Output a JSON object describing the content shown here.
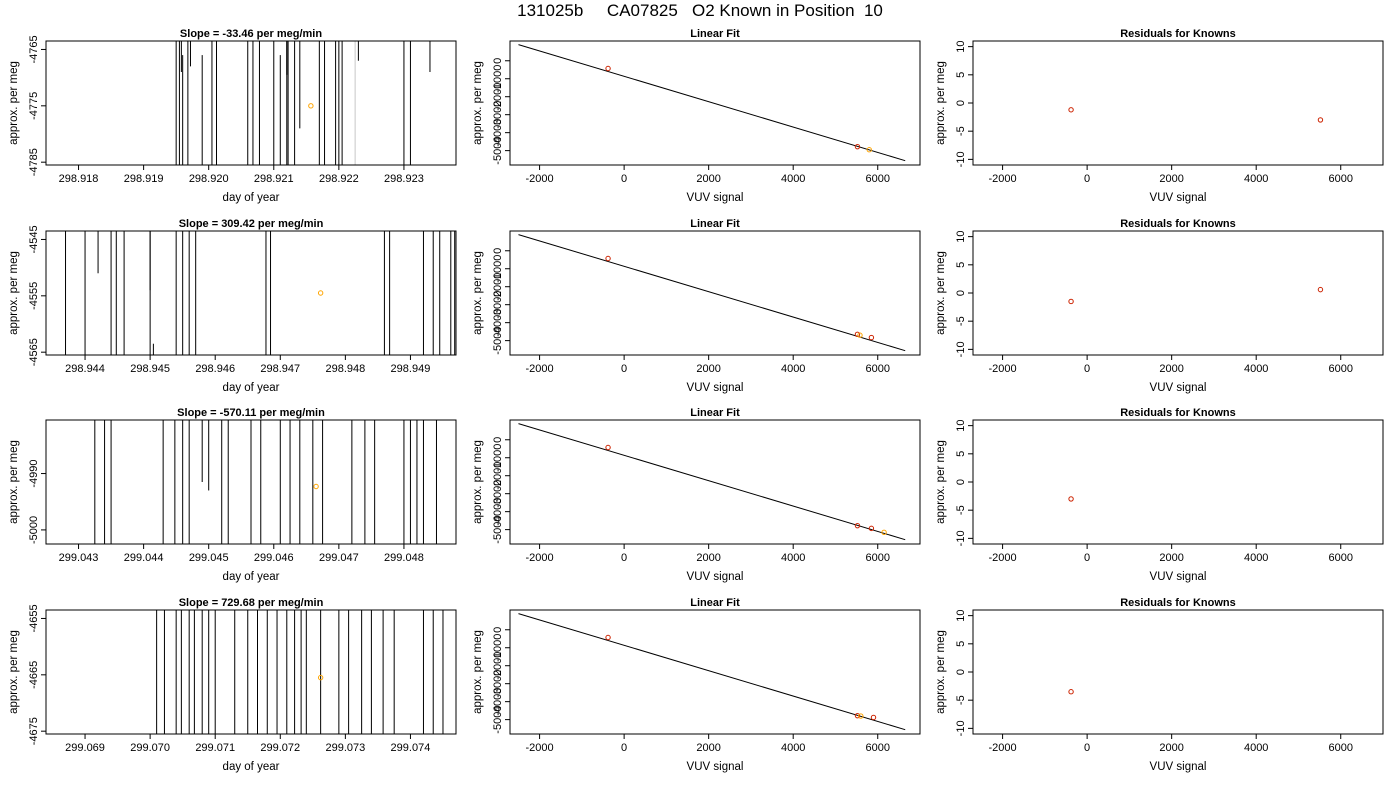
{
  "page_title": "131025b     CA07825   O2 Known in Position  10",
  "colors": {
    "frame": "#000000",
    "trace": "#000000",
    "trace_light": "#c8c8c8",
    "marker_orange": "#ffa500",
    "marker_red": "#cc2200",
    "fit_line": "#000000"
  },
  "chart_data": [
    {
      "row": 1,
      "panel": "time-series",
      "type": "line",
      "title": "Slope =  -33.46  per meg/min",
      "xlabel": "day of year",
      "ylabel": "approx. per meg",
      "xlim": [
        298.9175,
        298.9238
      ],
      "ylim": [
        -4785.5,
        -4763.5
      ],
      "xticks": [
        "298.918",
        "298.919",
        "298.920",
        "298.921",
        "298.922",
        "298.923"
      ],
      "xtick_values": [
        298.918,
        298.919,
        298.92,
        298.921,
        298.922,
        298.923
      ],
      "yticks": [
        "-4785",
        "-4775",
        "-4765"
      ],
      "ytick_values": [
        -4785,
        -4775,
        -4765
      ],
      "drops": [
        {
          "x": 298.9195,
          "top": -4763.5
        },
        {
          "x": 298.91955,
          "top": -4763.5
        },
        {
          "x": 298.9196,
          "top": -4766.0
        },
        {
          "x": 298.91968,
          "top": -4763.5
        },
        {
          "x": 298.9199,
          "top": -4766.0
        },
        {
          "x": 298.92005,
          "top": -4763.5
        },
        {
          "x": 298.92012,
          "top": -4763.5
        },
        {
          "x": 298.9206,
          "top": -4763.5
        },
        {
          "x": 298.92068,
          "top": -4763.5
        },
        {
          "x": 298.92078,
          "top": -4763.5
        },
        {
          "x": 298.921,
          "top": -4763.5
        },
        {
          "x": 298.9211,
          "top": -4766.0
        },
        {
          "x": 298.92122,
          "top": -4763.5
        },
        {
          "x": 298.92132,
          "top": -4763.5
        },
        {
          "x": 298.9217,
          "top": -4763.5
        },
        {
          "x": 298.92178,
          "top": -4763.5
        },
        {
          "x": 298.92195,
          "top": -4763.5
        },
        {
          "x": 298.922,
          "top": -4763.5
        },
        {
          "x": 298.92205,
          "top": -4763.5
        },
        {
          "x": 298.92225,
          "top": -4763.5,
          "light": true
        },
        {
          "x": 298.923,
          "top": -4763.5
        },
        {
          "x": 298.9231,
          "top": -4763.5
        },
        {
          "x": 298.9212,
          "top": -4763.5
        }
      ],
      "hangs": [
        {
          "x": 298.91958,
          "bottom": -4769.0
        },
        {
          "x": 298.91972,
          "bottom": -4768.0
        },
        {
          "x": 298.9214,
          "bottom": -4779.0
        },
        {
          "x": 298.9223,
          "bottom": -4767.0
        },
        {
          "x": 298.9234,
          "bottom": -4769.0
        },
        {
          "x": 298.9212,
          "bottom": -4769.5
        }
      ],
      "points": [
        {
          "x": 298.92157,
          "y": -4775.0,
          "color": "orange"
        }
      ]
    },
    {
      "row": 1,
      "panel": "fit",
      "type": "scatter",
      "title": "Linear Fit",
      "xlabel": "VUV signal",
      "ylabel": "approx. per meg",
      "xlim": [
        -2700,
        7000
      ],
      "ylim": [
        -5800,
        1100
      ],
      "xticks": [
        "-2000",
        "0",
        "2000",
        "4000",
        "6000"
      ],
      "xtick_values": [
        -2000,
        0,
        2000,
        4000,
        6000
      ],
      "yticks": [
        "-5000",
        "-4000",
        "-3000",
        "-2000",
        "-1000",
        "0"
      ],
      "ytick_values": [
        -5000,
        -4000,
        -3000,
        -2000,
        -1000,
        0
      ],
      "line": {
        "x1": -2500,
        "y1": 900,
        "x2": 6650,
        "y2": -5560
      },
      "points": [
        {
          "x": -380,
          "y": -430,
          "color": "red"
        },
        {
          "x": 5520,
          "y": -4780,
          "color": "red"
        },
        {
          "x": 5800,
          "y": -4950,
          "color": "orange"
        }
      ]
    },
    {
      "row": 1,
      "panel": "residuals",
      "type": "scatter",
      "title": "Residuals for Knowns",
      "xlabel": "VUV signal",
      "ylabel": "approx. per meg",
      "xlim": [
        -2700,
        7000
      ],
      "ylim": [
        -11,
        11
      ],
      "xticks": [
        "-2000",
        "0",
        "2000",
        "4000",
        "6000"
      ],
      "xtick_values": [
        -2000,
        0,
        2000,
        4000,
        6000
      ],
      "yticks": [
        "-10",
        "-5",
        "0",
        "5",
        "10"
      ],
      "ytick_values": [
        -10,
        -5,
        0,
        5,
        10
      ],
      "points": [
        {
          "x": -380,
          "y": -1.2,
          "color": "red"
        },
        {
          "x": 5520,
          "y": -3.0,
          "color": "red"
        }
      ]
    },
    {
      "row": 2,
      "panel": "time-series",
      "type": "line",
      "title": "Slope =  309.42  per meg/min",
      "xlabel": "day of year",
      "ylabel": "approx. per meg",
      "xlim": [
        298.9434,
        298.9497
      ],
      "ylim": [
        -4565.5,
        -4543.5
      ],
      "xticks": [
        "298.944",
        "298.945",
        "298.946",
        "298.947",
        "298.948",
        "298.949"
      ],
      "xtick_values": [
        298.944,
        298.945,
        298.946,
        298.947,
        298.948,
        298.949
      ],
      "yticks": [
        "-4565",
        "-4555",
        "-4545"
      ],
      "ytick_values": [
        -4565,
        -4555,
        -4545
      ],
      "drops": [
        {
          "x": 298.9437,
          "top": -4543.5
        },
        {
          "x": 298.944,
          "top": -4543.5
        },
        {
          "x": 298.9444,
          "top": -4543.5
        },
        {
          "x": 298.94448,
          "top": -4543.5
        },
        {
          "x": 298.9446,
          "top": -4543.5
        },
        {
          "x": 298.945,
          "top": -4543.5
        },
        {
          "x": 298.94505,
          "top": -4563.5
        },
        {
          "x": 298.9454,
          "top": -4543.5
        },
        {
          "x": 298.9455,
          "top": -4543.5
        },
        {
          "x": 298.9456,
          "top": -4543.5
        },
        {
          "x": 298.9457,
          "top": -4543.5
        },
        {
          "x": 298.94678,
          "top": -4543.5
        },
        {
          "x": 298.94685,
          "top": -4543.5
        },
        {
          "x": 298.9486,
          "top": -4543.5
        },
        {
          "x": 298.94868,
          "top": -4543.5
        },
        {
          "x": 298.9492,
          "top": -4543.5
        },
        {
          "x": 298.94935,
          "top": -4543.5
        },
        {
          "x": 298.94945,
          "top": -4543.5
        },
        {
          "x": 298.94962,
          "top": -4543.5
        },
        {
          "x": 298.94968,
          "top": -4543.5
        }
      ],
      "hangs": [
        {
          "x": 298.9442,
          "bottom": -4551.0
        },
        {
          "x": 298.945,
          "bottom": -4554.0
        }
      ],
      "points": [
        {
          "x": 298.94762,
          "y": -4554.5,
          "color": "orange"
        }
      ]
    },
    {
      "row": 2,
      "panel": "fit",
      "type": "scatter",
      "title": "Linear Fit",
      "xlabel": "VUV signal",
      "ylabel": "approx. per meg",
      "xlim": [
        -2700,
        7000
      ],
      "ylim": [
        -5800,
        1100
      ],
      "xticks": [
        "-2000",
        "0",
        "2000",
        "4000",
        "6000"
      ],
      "xtick_values": [
        -2000,
        0,
        2000,
        4000,
        6000
      ],
      "yticks": [
        "-5000",
        "-4000",
        "-3000",
        "-2000",
        "-1000",
        "0"
      ],
      "ytick_values": [
        -5000,
        -4000,
        -3000,
        -2000,
        -1000,
        0
      ],
      "line": {
        "x1": -2500,
        "y1": 900,
        "x2": 6650,
        "y2": -5560
      },
      "points": [
        {
          "x": -380,
          "y": -430,
          "color": "red"
        },
        {
          "x": 5520,
          "y": -4650,
          "color": "red"
        },
        {
          "x": 5580,
          "y": -4700,
          "color": "orange"
        },
        {
          "x": 5850,
          "y": -4830,
          "color": "red"
        }
      ]
    },
    {
      "row": 2,
      "panel": "residuals",
      "type": "scatter",
      "title": "Residuals for Knowns",
      "xlabel": "VUV signal",
      "ylabel": "approx. per meg",
      "xlim": [
        -2700,
        7000
      ],
      "ylim": [
        -11,
        11
      ],
      "xticks": [
        "-2000",
        "0",
        "2000",
        "4000",
        "6000"
      ],
      "xtick_values": [
        -2000,
        0,
        2000,
        4000,
        6000
      ],
      "yticks": [
        "-10",
        "-5",
        "0",
        "5",
        "10"
      ],
      "ytick_values": [
        -10,
        -5,
        0,
        5,
        10
      ],
      "points": [
        {
          "x": -380,
          "y": -1.5,
          "color": "red"
        },
        {
          "x": 5520,
          "y": 0.6,
          "color": "red"
        }
      ]
    },
    {
      "row": 3,
      "panel": "time-series",
      "type": "line",
      "title": "Slope =  -570.11  per meg/min",
      "xlabel": "day of year",
      "ylabel": "approx. per meg",
      "xlim": [
        299.0425,
        299.0488
      ],
      "ylim": [
        -5002.5,
        -4980.5
      ],
      "xticks": [
        "299.043",
        "299.044",
        "299.045",
        "299.046",
        "299.047",
        "299.048"
      ],
      "xtick_values": [
        299.043,
        299.044,
        299.045,
        299.046,
        299.047,
        299.048
      ],
      "yticks": [
        "-5000",
        "-4990"
      ],
      "ytick_values": [
        -5000,
        -4990
      ],
      "drops": [
        {
          "x": 299.04325,
          "top": -4980.5
        },
        {
          "x": 299.0434,
          "top": -4980.5
        },
        {
          "x": 299.0435,
          "top": -4980.5
        },
        {
          "x": 299.0443,
          "top": -4980.5
        },
        {
          "x": 299.04448,
          "top": -4980.5
        },
        {
          "x": 299.0446,
          "top": -4980.5
        },
        {
          "x": 299.0447,
          "top": -4980.5
        },
        {
          "x": 299.0452,
          "top": -4980.5
        },
        {
          "x": 299.0453,
          "top": -4980.5
        },
        {
          "x": 299.04565,
          "top": -4980.5
        },
        {
          "x": 299.0458,
          "top": -4980.5
        },
        {
          "x": 299.0461,
          "top": -4980.5
        },
        {
          "x": 299.04625,
          "top": -4980.5
        },
        {
          "x": 299.0464,
          "top": -4980.5
        },
        {
          "x": 299.0466,
          "top": -4980.5
        },
        {
          "x": 299.04675,
          "top": -4980.5
        },
        {
          "x": 299.0472,
          "top": -4980.5
        },
        {
          "x": 299.0474,
          "top": -4980.5
        },
        {
          "x": 299.04755,
          "top": -4980.5
        },
        {
          "x": 299.048,
          "top": -4980.5
        },
        {
          "x": 299.0481,
          "top": -4980.5
        },
        {
          "x": 299.0482,
          "top": -4980.5
        },
        {
          "x": 299.0483,
          "top": -4980.5
        },
        {
          "x": 299.0485,
          "top": -4980.5
        }
      ],
      "hangs": [
        {
          "x": 299.0449,
          "bottom": -4991.5
        },
        {
          "x": 299.045,
          "bottom": -4993.0
        }
      ],
      "points": [
        {
          "x": 299.04665,
          "y": -4992.3,
          "color": "orange"
        }
      ]
    },
    {
      "row": 3,
      "panel": "fit",
      "type": "scatter",
      "title": "Linear Fit",
      "xlabel": "VUV signal",
      "ylabel": "approx. per meg",
      "xlim": [
        -2700,
        7000
      ],
      "ylim": [
        -5800,
        1100
      ],
      "xticks": [
        "-2000",
        "0",
        "2000",
        "4000",
        "6000"
      ],
      "xtick_values": [
        -2000,
        0,
        2000,
        4000,
        6000
      ],
      "yticks": [
        "-5000",
        "-4000",
        "-3000",
        "-2000",
        "-1000",
        "0"
      ],
      "ytick_values": [
        -5000,
        -4000,
        -3000,
        -2000,
        -1000,
        0
      ],
      "line": {
        "x1": -2500,
        "y1": 900,
        "x2": 6650,
        "y2": -5560
      },
      "points": [
        {
          "x": -380,
          "y": -430,
          "color": "red"
        },
        {
          "x": 5520,
          "y": -4780,
          "color": "red"
        },
        {
          "x": 5850,
          "y": -4930,
          "color": "red"
        },
        {
          "x": 6150,
          "y": -5150,
          "color": "orange"
        }
      ]
    },
    {
      "row": 3,
      "panel": "residuals",
      "type": "scatter",
      "title": "Residuals for Knowns",
      "xlabel": "VUV signal",
      "ylabel": "approx. per meg",
      "xlim": [
        -2700,
        7000
      ],
      "ylim": [
        -11,
        11
      ],
      "xticks": [
        "-2000",
        "0",
        "2000",
        "4000",
        "6000"
      ],
      "xtick_values": [
        -2000,
        0,
        2000,
        4000,
        6000
      ],
      "yticks": [
        "-10",
        "-5",
        "0",
        "5",
        "10"
      ],
      "ytick_values": [
        -10,
        -5,
        0,
        5,
        10
      ],
      "points": [
        {
          "x": -380,
          "y": -3.0,
          "color": "red"
        }
      ]
    },
    {
      "row": 4,
      "panel": "time-series",
      "type": "line",
      "title": "Slope =  729.68  per meg/min",
      "xlabel": "day of year",
      "ylabel": "approx. per meg",
      "xlim": [
        299.0684,
        299.0747
      ],
      "ylim": [
        -4675.5,
        -4653.5
      ],
      "xticks": [
        "299.069",
        "299.070",
        "299.071",
        "299.072",
        "299.073",
        "299.074"
      ],
      "xtick_values": [
        299.069,
        299.07,
        299.071,
        299.072,
        299.073,
        299.074
      ],
      "yticks": [
        "-4675",
        "-4665",
        "-4655"
      ],
      "ytick_values": [
        -4675,
        -4665,
        -4655
      ],
      "drops": [
        {
          "x": 299.0701,
          "top": -4653.5
        },
        {
          "x": 299.07022,
          "top": -4653.5
        },
        {
          "x": 299.0704,
          "top": -4653.5
        },
        {
          "x": 299.07048,
          "top": -4653.5
        },
        {
          "x": 299.0706,
          "top": -4653.5
        },
        {
          "x": 299.07068,
          "top": -4653.5
        },
        {
          "x": 299.0708,
          "top": -4653.5
        },
        {
          "x": 299.0709,
          "top": -4653.5
        },
        {
          "x": 299.071,
          "top": -4653.5
        },
        {
          "x": 299.0713,
          "top": -4653.5
        },
        {
          "x": 299.0715,
          "top": -4653.5
        },
        {
          "x": 299.07165,
          "top": -4653.5
        },
        {
          "x": 299.0718,
          "top": -4653.5
        },
        {
          "x": 299.07195,
          "top": -4653.5
        },
        {
          "x": 299.0721,
          "top": -4653.5
        },
        {
          "x": 299.07222,
          "top": -4653.5
        },
        {
          "x": 299.07232,
          "top": -4653.5
        },
        {
          "x": 299.0724,
          "top": -4653.5
        },
        {
          "x": 299.07262,
          "top": -4653.5
        },
        {
          "x": 299.0729,
          "top": -4653.5
        },
        {
          "x": 299.07305,
          "top": -4653.5
        },
        {
          "x": 299.07325,
          "top": -4653.5
        },
        {
          "x": 299.0734,
          "top": -4653.5
        },
        {
          "x": 299.07358,
          "top": -4653.5
        },
        {
          "x": 299.07375,
          "top": -4653.5
        },
        {
          "x": 299.0742,
          "top": -4653.5
        },
        {
          "x": 299.07435,
          "top": -4653.5
        },
        {
          "x": 299.0745,
          "top": -4653.5
        }
      ],
      "hangs": [],
      "points": [
        {
          "x": 299.07262,
          "y": -4665.5,
          "color": "orange"
        }
      ]
    },
    {
      "row": 4,
      "panel": "fit",
      "type": "scatter",
      "title": "Linear Fit",
      "xlabel": "VUV signal",
      "ylabel": "approx. per meg",
      "xlim": [
        -2700,
        7000
      ],
      "ylim": [
        -5800,
        1100
      ],
      "xticks": [
        "-2000",
        "0",
        "2000",
        "4000",
        "6000"
      ],
      "xtick_values": [
        -2000,
        0,
        2000,
        4000,
        6000
      ],
      "yticks": [
        "-5000",
        "-4000",
        "-3000",
        "-2000",
        "-1000",
        "0"
      ],
      "ytick_values": [
        -5000,
        -4000,
        -3000,
        -2000,
        -1000,
        0
      ],
      "line": {
        "x1": -2500,
        "y1": 900,
        "x2": 6650,
        "y2": -5560
      },
      "points": [
        {
          "x": -380,
          "y": -430,
          "color": "red"
        },
        {
          "x": 5520,
          "y": -4780,
          "color": "red"
        },
        {
          "x": 5600,
          "y": -4800,
          "color": "orange"
        },
        {
          "x": 5900,
          "y": -4880,
          "color": "red"
        }
      ]
    },
    {
      "row": 4,
      "panel": "residuals",
      "type": "scatter",
      "title": "Residuals for Knowns",
      "xlabel": "VUV signal",
      "ylabel": "approx. per meg",
      "xlim": [
        -2700,
        7000
      ],
      "ylim": [
        -11,
        11
      ],
      "xticks": [
        "-2000",
        "0",
        "2000",
        "4000",
        "6000"
      ],
      "xtick_values": [
        -2000,
        0,
        2000,
        4000,
        6000
      ],
      "yticks": [
        "-10",
        "-5",
        "0",
        "5",
        "10"
      ],
      "ytick_values": [
        -10,
        -5,
        0,
        5,
        10
      ],
      "points": [
        {
          "x": -380,
          "y": -3.5,
          "color": "red"
        }
      ]
    }
  ]
}
